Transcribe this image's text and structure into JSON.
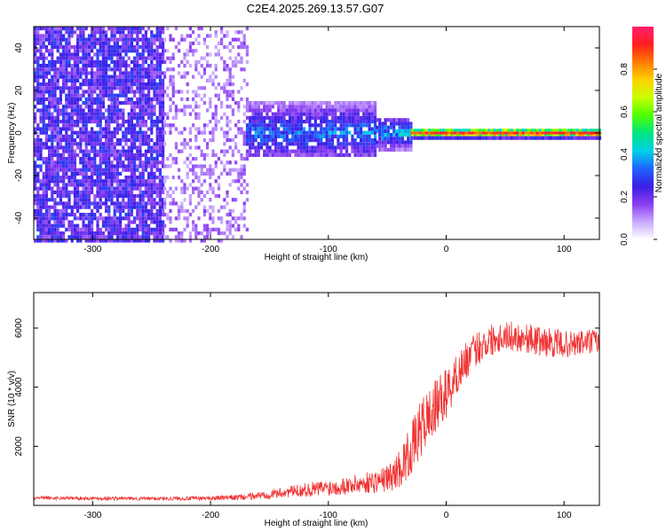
{
  "title": "C2E4.2025.269.13.57.G07",
  "chart_data": [
    {
      "type": "heatmap",
      "name": "spectrogram",
      "xlabel": "Height of straight line (km)",
      "ylabel": "Frequency (Hz)",
      "xlim": [
        -350,
        130
      ],
      "ylim": [
        -50,
        50
      ],
      "xticks": [
        -300,
        -200,
        -100,
        0,
        100
      ],
      "yticks": [
        -40,
        -20,
        0,
        20,
        40
      ],
      "colorbar": {
        "label": "Normalized spectral amplitude",
        "range": [
          0,
          1
        ],
        "ticks": [
          "0.0",
          "0.2",
          "0.4",
          "0.6",
          "0.8"
        ],
        "colors": [
          "#ffffff",
          "#c8a8ff",
          "#8a3cf0",
          "#3a1ee6",
          "#1e64ff",
          "#00d2e6",
          "#00e680",
          "#50ff00",
          "#c8ff00",
          "#ffd200",
          "#ff7a00",
          "#ff1e1e",
          "#ff1e6e"
        ]
      },
      "regions": [
        {
          "from": -350,
          "to": -240,
          "fmin": -50,
          "fmax": 50,
          "amplitude": 0.22,
          "density": 0.85
        },
        {
          "from": -240,
          "to": -170,
          "fmin": -50,
          "fmax": 50,
          "amplitude": 0.12,
          "density": 0.35
        },
        {
          "from": -170,
          "to": -60,
          "fmin": -10,
          "fmax": 15,
          "amplitude": 0.35,
          "density": 0.9
        },
        {
          "from": -60,
          "to": -30,
          "fmin": -7,
          "fmax": 7,
          "amplitude": 0.4,
          "density": 0.9
        },
        {
          "from": -30,
          "to": 130,
          "fmin": -2,
          "fmax": 2,
          "amplitude": 0.85,
          "density": 1.0
        }
      ]
    },
    {
      "type": "line",
      "name": "snr",
      "xlabel": "Height of straight line (km)",
      "ylabel": "SNR (10 * v/v)",
      "xlim": [
        -350,
        130
      ],
      "ylim": [
        0,
        7200
      ],
      "xticks": [
        -300,
        -200,
        -100,
        0,
        100
      ],
      "yticks": [
        2000,
        4000,
        6000
      ],
      "color": "#f03232",
      "series": [
        {
          "name": "SNR",
          "x": [
            -350,
            -300,
            -250,
            -200,
            -170,
            -150,
            -130,
            -110,
            -90,
            -70,
            -55,
            -45,
            -38,
            -30,
            -25,
            -20,
            -15,
            -10,
            -5,
            0,
            5,
            10,
            15,
            20,
            25,
            30,
            40,
            50,
            60,
            70,
            80,
            90,
            100,
            110,
            120,
            130
          ],
          "values": [
            250,
            240,
            230,
            240,
            280,
            380,
            480,
            560,
            650,
            750,
            850,
            1000,
            1350,
            1850,
            2300,
            2700,
            3000,
            3250,
            3550,
            3800,
            4100,
            4500,
            4800,
            5050,
            5250,
            5450,
            5650,
            5750,
            5700,
            5650,
            5550,
            5500,
            5450,
            5450,
            5550,
            5500
          ],
          "noise": [
            60,
            60,
            60,
            70,
            100,
            160,
            200,
            260,
            300,
            350,
            420,
            500,
            700,
            850,
            950,
            1000,
            1000,
            950,
            900,
            850,
            800,
            700,
            650,
            600,
            600,
            600,
            550,
            500,
            500,
            500,
            500,
            500,
            450,
            450,
            450,
            450
          ]
        }
      ]
    }
  ]
}
